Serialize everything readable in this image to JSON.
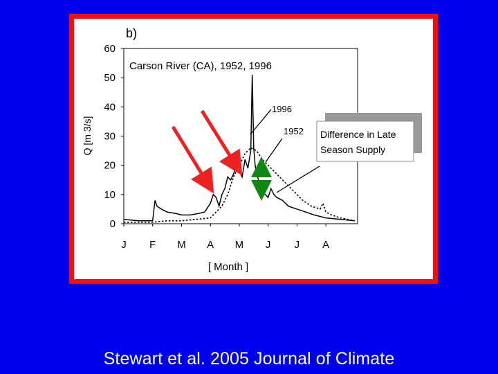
{
  "caption": "Stewart et al. 2005  Journal of Climate",
  "colors": {
    "background": "#0000ee",
    "frame": "#ee1111",
    "arrow_red": "#ee2222",
    "arrow_green": "#118811",
    "series": "#000000",
    "callout_shadow": "#999999"
  },
  "chart_data": {
    "type": "line",
    "panel_label": "b)",
    "title": "Carson River (CA), 1952, 1996",
    "ylabel": "Q [m 3/s]",
    "xlabel": "[ Month ]",
    "ylim": [
      0,
      60
    ],
    "yticks": [
      "0",
      "10",
      "20",
      "30",
      "40",
      "50",
      "60"
    ],
    "xlim": [
      0,
      8.1
    ],
    "xtick_labels": [
      "J",
      "F",
      "M",
      "A",
      "M",
      "J",
      "J",
      "A"
    ],
    "grid": false,
    "series": [
      {
        "name": "1996",
        "style": "solid",
        "x": [
          0,
          0.5,
          1.0,
          1.08,
          1.15,
          1.3,
          1.5,
          1.8,
          2.0,
          2.3,
          2.6,
          2.8,
          3.0,
          3.1,
          3.2,
          3.3,
          3.4,
          3.5,
          3.6,
          3.7,
          3.8,
          3.9,
          4.0,
          4.1,
          4.2,
          4.3,
          4.4,
          4.45,
          4.5,
          4.55,
          4.6,
          4.7,
          4.8,
          4.9,
          5.0,
          5.1,
          5.2,
          5.3,
          5.5,
          5.7,
          6.0,
          6.3,
          6.6,
          7.0,
          7.5,
          8.0
        ],
        "y": [
          1.5,
          1,
          1,
          8,
          6,
          5,
          4,
          3.5,
          3,
          3,
          3.5,
          4,
          7,
          10,
          9,
          6,
          10,
          12,
          16,
          15,
          17,
          20,
          18,
          16,
          22,
          19,
          25,
          51,
          26,
          20,
          17,
          14,
          11,
          10,
          9,
          12,
          10,
          9,
          8,
          6,
          5,
          4,
          3,
          2,
          1.5,
          1
        ]
      },
      {
        "name": "1952",
        "style": "dashed",
        "x": [
          0,
          0.5,
          1.0,
          1.5,
          2.0,
          2.5,
          3.0,
          3.2,
          3.4,
          3.6,
          3.8,
          4.0,
          4.2,
          4.4,
          4.6,
          4.8,
          5.0,
          5.2,
          5.4,
          5.6,
          5.8,
          6.0,
          6.2,
          6.5,
          6.8,
          6.9,
          7.0,
          7.2,
          7.5,
          8.0
        ],
        "y": [
          0.5,
          0.5,
          0.5,
          1,
          1,
          1.5,
          2,
          4,
          6,
          10,
          16,
          20,
          24,
          26,
          25,
          22,
          20,
          18,
          16,
          14,
          12,
          10,
          8,
          6,
          5,
          7,
          4,
          3,
          2,
          1
        ]
      }
    ],
    "annotations": [
      {
        "text": "1996",
        "x": 5.0,
        "y": 39
      },
      {
        "text": "1952",
        "x": 5.5,
        "y": 31
      }
    ],
    "callout": {
      "line1": "Difference in Late",
      "line2": "Season Supply"
    }
  }
}
